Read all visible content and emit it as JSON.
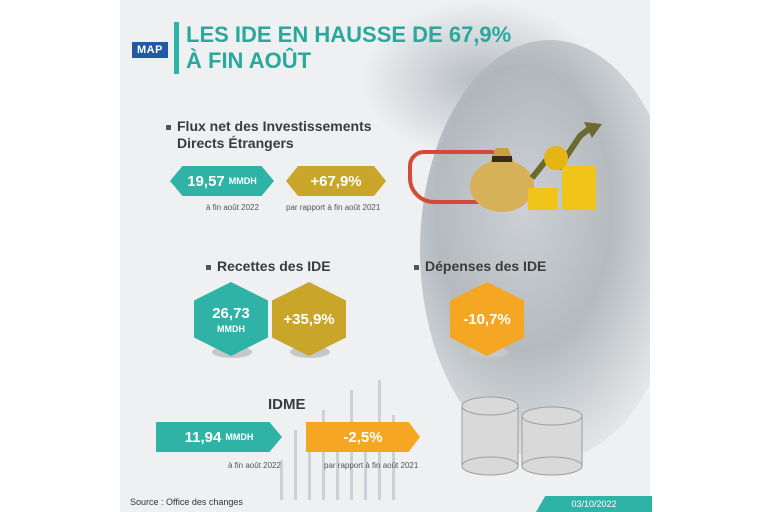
{
  "logo": "MAP",
  "title": {
    "line1": "LES IDE EN HAUSSE DE 67,9%",
    "line2": "À FIN AOÛT"
  },
  "flux": {
    "heading1": "Flux net des Investissements",
    "heading2": "Directs Étrangers",
    "value": "19,57",
    "unit": "MMDH",
    "change": "+67,9%",
    "caption_value": "à fin août 2022",
    "caption_change": "par rapport à fin août 2021"
  },
  "recettes": {
    "heading": "Recettes des IDE",
    "value": "26,73",
    "unit": "MMDH",
    "change": "+35,9%"
  },
  "depenses": {
    "heading": "Dépenses des IDE",
    "change": "-10,7%"
  },
  "idme": {
    "heading": "IDME",
    "value": "11,94",
    "unit": "MMDH",
    "change": "-2,5%",
    "caption_value": "à fin août 2022",
    "caption_change": "par rapport à fin août 2021"
  },
  "footer": {
    "source": "Source : Office des changes",
    "date": "03/10/2022"
  },
  "colors": {
    "teal": "#2fb3a7",
    "olive": "#c9a52a",
    "orange": "#f5a623",
    "brand": "#1f5aa6"
  },
  "icons": [
    "money-bag-icon",
    "coin-stacks-icon",
    "trend-arrow-icon",
    "silver-coins-icon"
  ]
}
